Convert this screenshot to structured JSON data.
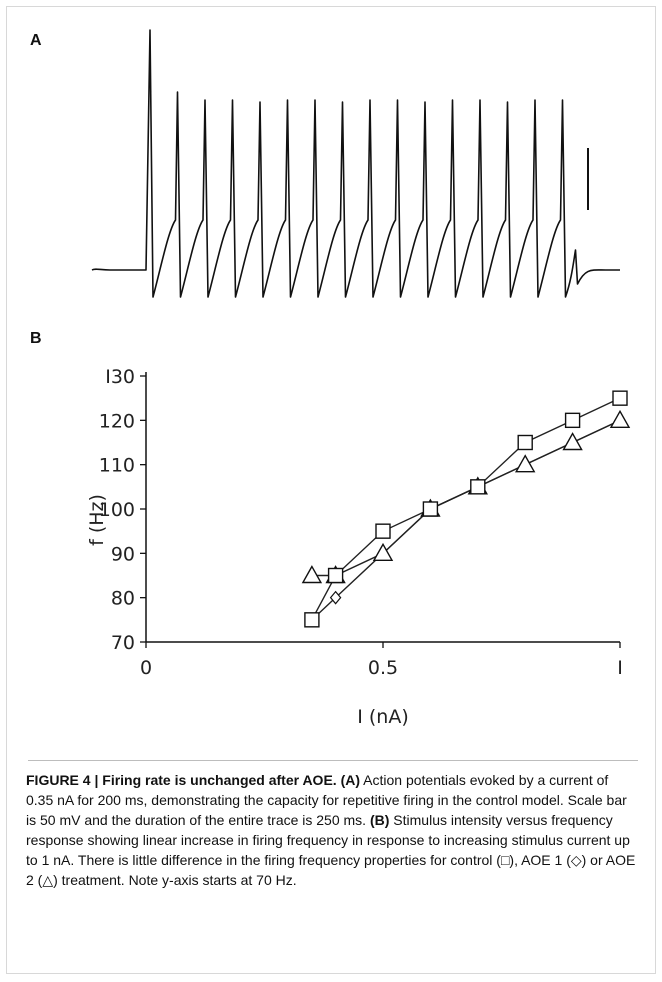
{
  "panels": {
    "a_label": "A",
    "b_label": "B"
  },
  "chart_data": [
    {
      "type": "line",
      "panel": "A",
      "title": "",
      "xlabel": "",
      "ylabel": "",
      "grid": false,
      "axes_visible": false,
      "trace_color": "#111111",
      "scale_bar_label": "",
      "description_values": {
        "current_nA": 0.35,
        "stimulus_ms": 200,
        "trace_duration_ms": 250,
        "scale_bar_mV": 50
      },
      "spike_count": 16
    },
    {
      "type": "line",
      "panel": "B",
      "title": "",
      "xlabel": "I (nA)",
      "ylabel": "f (Hz)",
      "xlim": [
        0,
        1
      ],
      "ylim": [
        70,
        130
      ],
      "xticks": [
        0,
        0.5,
        1
      ],
      "xtick_labels": [
        "0",
        "0.5",
        "I"
      ],
      "yticks": [
        70,
        80,
        90,
        100,
        110,
        120,
        130
      ],
      "ytick_labels": [
        "70",
        "80",
        "90",
        "100",
        "110",
        "120",
        "I30"
      ],
      "grid": false,
      "legend": "none",
      "series": [
        {
          "marker": "square",
          "x": [
            0.35,
            0.4,
            0.5,
            0.6,
            0.7,
            0.8,
            0.9,
            1.0
          ],
          "y": [
            75,
            85,
            95,
            100,
            105,
            115,
            120,
            125
          ]
        },
        {
          "marker": "diamond",
          "x": [
            0.35,
            0.4,
            0.5,
            0.6,
            0.7,
            0.8,
            0.9,
            1.0
          ],
          "y": [
            75,
            80,
            90,
            100,
            105,
            110,
            115,
            120
          ]
        },
        {
          "marker": "triangle",
          "x": [
            0.35,
            0.4,
            0.5,
            0.6,
            0.7,
            0.8,
            0.9,
            1.0
          ],
          "y": [
            85,
            85,
            90,
            100,
            105,
            110,
            115,
            120
          ]
        }
      ]
    }
  ],
  "caption": {
    "figure_label": "FIGURE 4 | Firing rate is unchanged after AOE.",
    "a_ref": "(A)",
    "a_text": "Action potentials evoked by a current of 0.35 nA for 200 ms, demonstrating the capacity for repetitive firing in the control model. Scale bar is 50 mV and the duration of the entire trace is 250 ms.",
    "b_ref": "(B)",
    "b_text": "Stimulus intensity versus frequency response showing linear increase in firing frequency in response to increasing stimulus current up to 1 nA. There is little difference in the firing frequency properties for control (□), AOE 1 (◇) or AOE 2 (△) treatment. Note y-axis starts at 70 Hz."
  }
}
